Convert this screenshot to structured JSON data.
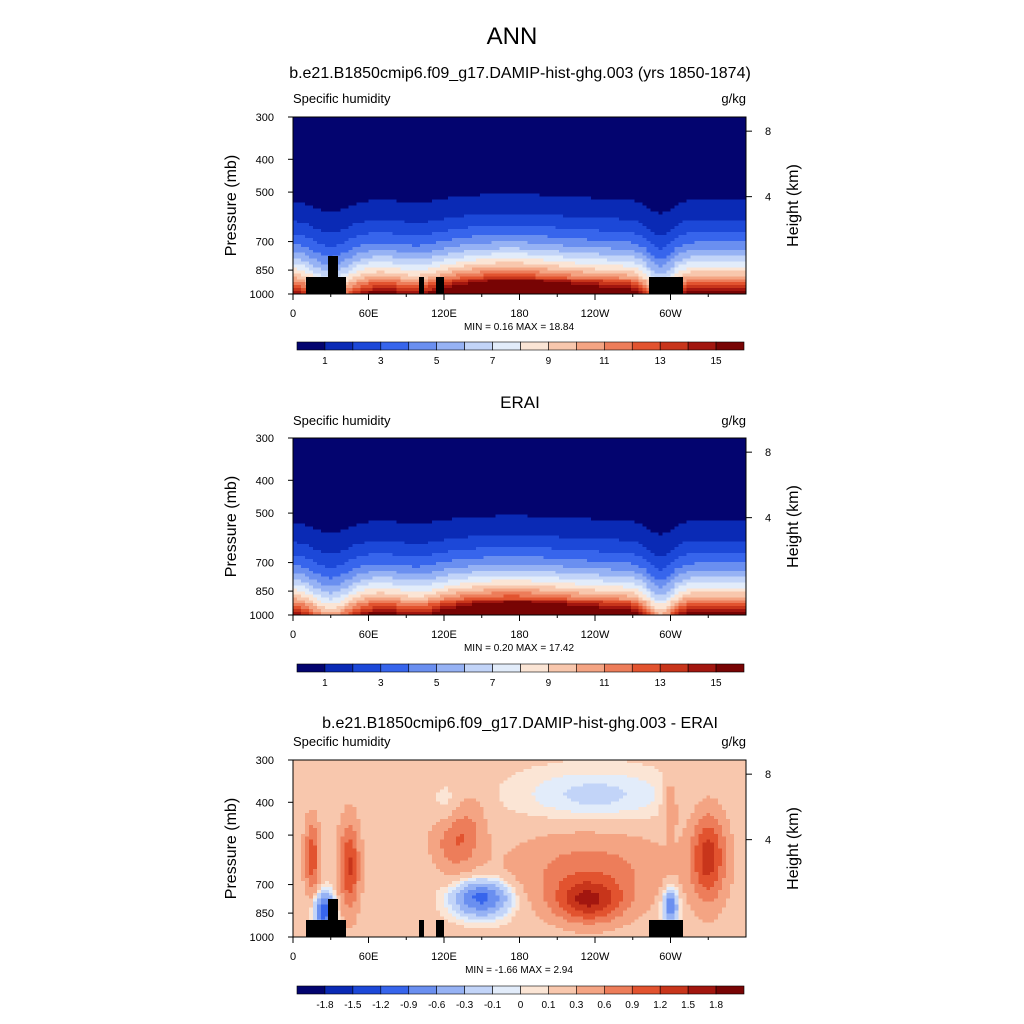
{
  "main_title": "ANN",
  "chart_data": [
    {
      "type": "heatmap",
      "title": "b.e21.B1850cmip6.f09_g17.DAMIP-hist-ghg.003 (yrs 1850-1874)",
      "left_label": "Specific humidity",
      "right_label": "g/kg",
      "xlabel": "",
      "ylabel": "Pressure (mb)",
      "y2label": "Height (km)",
      "x_ticks": [
        "0",
        "60E",
        "120E",
        "180",
        "120W",
        "60W"
      ],
      "y_ticks": [
        "300",
        "400",
        "500",
        "700",
        "850",
        "1000"
      ],
      "y2_ticks": [
        "8",
        "4"
      ],
      "stats": "MIN =   0.16  MAX =  18.84",
      "field": "absolute",
      "has_terrain_mask": true,
      "colorbar": {
        "labels": [
          "1",
          "3",
          "5",
          "7",
          "9",
          "11",
          "13",
          "15"
        ],
        "colors": [
          "#03046f",
          "#0a2ab5",
          "#1c48d8",
          "#3765ec",
          "#6a8ff0",
          "#96b2f4",
          "#c2d4f8",
          "#e2ecfa",
          "#fbe5d5",
          "#f8c7ad",
          "#f4a483",
          "#ed7d5a",
          "#e2532f",
          "#c8351b",
          "#a2160f",
          "#780404"
        ]
      }
    },
    {
      "type": "heatmap",
      "title": "ERAI",
      "left_label": "Specific humidity",
      "right_label": "g/kg",
      "xlabel": "",
      "ylabel": "Pressure (mb)",
      "y2label": "Height (km)",
      "x_ticks": [
        "0",
        "60E",
        "120E",
        "180",
        "120W",
        "60W"
      ],
      "y_ticks": [
        "300",
        "400",
        "500",
        "700",
        "850",
        "1000"
      ],
      "y2_ticks": [
        "8",
        "4"
      ],
      "stats": "MIN =   0.20  MAX =  17.42",
      "field": "absolute",
      "has_terrain_mask": false,
      "colorbar": {
        "labels": [
          "1",
          "3",
          "5",
          "7",
          "9",
          "11",
          "13",
          "15"
        ],
        "colors": [
          "#03046f",
          "#0a2ab5",
          "#1c48d8",
          "#3765ec",
          "#6a8ff0",
          "#96b2f4",
          "#c2d4f8",
          "#e2ecfa",
          "#fbe5d5",
          "#f8c7ad",
          "#f4a483",
          "#ed7d5a",
          "#e2532f",
          "#c8351b",
          "#a2160f",
          "#780404"
        ]
      }
    },
    {
      "type": "heatmap",
      "title": "b.e21.B1850cmip6.f09_g17.DAMIP-hist-ghg.003 - ERAI",
      "left_label": "Specific humidity",
      "right_label": "g/kg",
      "xlabel": "",
      "ylabel": "Pressure (mb)",
      "y2label": "Height (km)",
      "x_ticks": [
        "0",
        "60E",
        "120E",
        "180",
        "120W",
        "60W"
      ],
      "y_ticks": [
        "300",
        "400",
        "500",
        "700",
        "850",
        "1000"
      ],
      "y2_ticks": [
        "8",
        "4"
      ],
      "stats": "MIN =  -1.66  MAX =   2.94",
      "field": "difference",
      "has_terrain_mask": true,
      "colorbar": {
        "labels": [
          "-1.8",
          "-1.5",
          "-1.2",
          "-0.9",
          "-0.6",
          "-0.3",
          "-0.1",
          "0",
          "0.1",
          "0.3",
          "0.6",
          "0.9",
          "1.2",
          "1.5",
          "1.8"
        ],
        "colors": [
          "#03046f",
          "#0a2ab5",
          "#1c48d8",
          "#3765ec",
          "#6a8ff0",
          "#96b2f4",
          "#c2d4f8",
          "#e2ecfa",
          "#fbe5d5",
          "#f8c7ad",
          "#f4a483",
          "#ed7d5a",
          "#e2532f",
          "#c8351b",
          "#a2160f",
          "#780404"
        ]
      }
    }
  ]
}
